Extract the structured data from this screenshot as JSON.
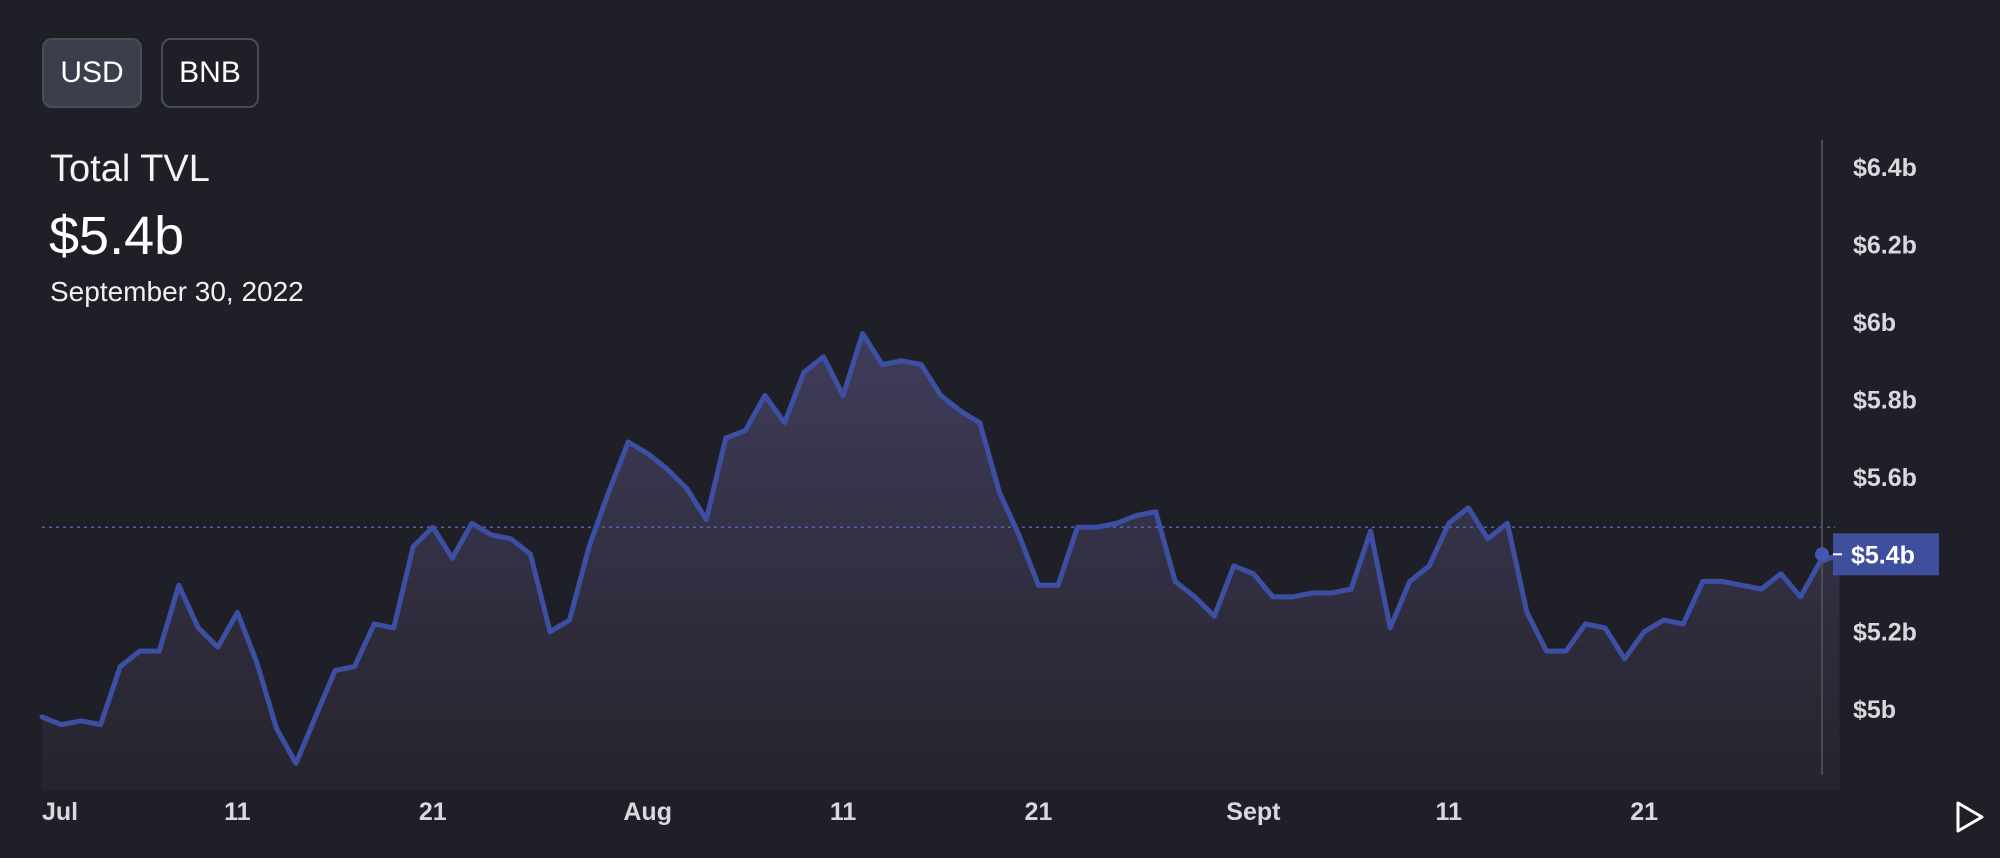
{
  "toggles": [
    {
      "label": "USD",
      "active": true
    },
    {
      "label": "BNB",
      "active": false
    }
  ],
  "header": {
    "title": "Total TVL",
    "value": "$5.4b",
    "date": "September 30, 2022"
  },
  "current_value_label": "$5.4b",
  "play_icon": "play-icon",
  "colors": {
    "background": "#1f2027",
    "line": "#3d4fa3",
    "current_label_bg": "#3e4f9e",
    "grid": "#5a5fb0"
  },
  "chart_data": {
    "type": "area",
    "title": "Total TVL",
    "xlabel": "",
    "ylabel": "",
    "ylim": [
      4.83,
      6.47
    ],
    "xlim": [
      "2022-07-01",
      "2022-09-30"
    ],
    "x_ticks": [
      {
        "label": "Jul",
        "date": "2022-07-01"
      },
      {
        "label": "11",
        "date": "2022-07-11"
      },
      {
        "label": "21",
        "date": "2022-07-21"
      },
      {
        "label": "Aug",
        "date": "2022-08-01"
      },
      {
        "label": "11",
        "date": "2022-08-11"
      },
      {
        "label": "21",
        "date": "2022-08-21"
      },
      {
        "label": "Sept",
        "date": "2022-09-01"
      },
      {
        "label": "11",
        "date": "2022-09-11"
      },
      {
        "label": "21",
        "date": "2022-09-21"
      }
    ],
    "y_ticks": [
      {
        "label": "$5b",
        "value": 5.0
      },
      {
        "label": "$5.2b",
        "value": 5.2
      },
      {
        "label": "$5.4b",
        "value": 5.4
      },
      {
        "label": "$5.6b",
        "value": 5.6
      },
      {
        "label": "$5.8b",
        "value": 5.8
      },
      {
        "label": "$6b",
        "value": 6.0
      },
      {
        "label": "$6.2b",
        "value": 6.2
      },
      {
        "label": "$6.4b",
        "value": 6.4
      }
    ],
    "grid": false,
    "legend": "none",
    "reference_line": 5.47,
    "series": [
      {
        "points": [
          [
            "2022-07-01",
            4.98
          ],
          [
            "2022-07-02",
            4.96
          ],
          [
            "2022-07-03",
            4.97
          ],
          [
            "2022-07-04",
            4.96
          ],
          [
            "2022-07-05",
            5.11
          ],
          [
            "2022-07-06",
            5.15
          ],
          [
            "2022-07-07",
            5.15
          ],
          [
            "2022-07-08",
            5.32
          ],
          [
            "2022-07-09",
            5.21
          ],
          [
            "2022-07-10",
            5.16
          ],
          [
            "2022-07-11",
            5.25
          ],
          [
            "2022-07-12",
            5.12
          ],
          [
            "2022-07-13",
            4.95
          ],
          [
            "2022-07-14",
            4.86
          ],
          [
            "2022-07-15",
            4.98
          ],
          [
            "2022-07-16",
            5.1
          ],
          [
            "2022-07-17",
            5.11
          ],
          [
            "2022-07-18",
            5.22
          ],
          [
            "2022-07-19",
            5.21
          ],
          [
            "2022-07-20",
            5.42
          ],
          [
            "2022-07-21",
            5.47
          ],
          [
            "2022-07-22",
            5.39
          ],
          [
            "2022-07-23",
            5.48
          ],
          [
            "2022-07-24",
            5.45
          ],
          [
            "2022-07-25",
            5.44
          ],
          [
            "2022-07-26",
            5.4
          ],
          [
            "2022-07-27",
            5.2
          ],
          [
            "2022-07-28",
            5.23
          ],
          [
            "2022-07-29",
            5.42
          ],
          [
            "2022-07-30",
            5.56
          ],
          [
            "2022-07-31",
            5.69
          ],
          [
            "2022-08-01",
            5.66
          ],
          [
            "2022-08-02",
            5.62
          ],
          [
            "2022-08-03",
            5.57
          ],
          [
            "2022-08-04",
            5.49
          ],
          [
            "2022-08-05",
            5.7
          ],
          [
            "2022-08-06",
            5.72
          ],
          [
            "2022-08-07",
            5.81
          ],
          [
            "2022-08-08",
            5.74
          ],
          [
            "2022-08-09",
            5.87
          ],
          [
            "2022-08-10",
            5.91
          ],
          [
            "2022-08-11",
            5.81
          ],
          [
            "2022-08-12",
            5.97
          ],
          [
            "2022-08-13",
            5.89
          ],
          [
            "2022-08-14",
            5.9
          ],
          [
            "2022-08-15",
            5.89
          ],
          [
            "2022-08-16",
            5.81
          ],
          [
            "2022-08-17",
            5.77
          ],
          [
            "2022-08-18",
            5.74
          ],
          [
            "2022-08-19",
            5.56
          ],
          [
            "2022-08-20",
            5.45
          ],
          [
            "2022-08-21",
            5.32
          ],
          [
            "2022-08-22",
            5.32
          ],
          [
            "2022-08-23",
            5.47
          ],
          [
            "2022-08-24",
            5.47
          ],
          [
            "2022-08-25",
            5.48
          ],
          [
            "2022-08-26",
            5.5
          ],
          [
            "2022-08-27",
            5.51
          ],
          [
            "2022-08-28",
            5.33
          ],
          [
            "2022-08-29",
            5.29
          ],
          [
            "2022-08-30",
            5.24
          ],
          [
            "2022-08-31",
            5.37
          ],
          [
            "2022-09-01",
            5.35
          ],
          [
            "2022-09-02",
            5.29
          ],
          [
            "2022-09-03",
            5.29
          ],
          [
            "2022-09-04",
            5.3
          ],
          [
            "2022-09-05",
            5.3
          ],
          [
            "2022-09-06",
            5.31
          ],
          [
            "2022-09-07",
            5.46
          ],
          [
            "2022-09-08",
            5.21
          ],
          [
            "2022-09-09",
            5.33
          ],
          [
            "2022-09-10",
            5.37
          ],
          [
            "2022-09-11",
            5.48
          ],
          [
            "2022-09-12",
            5.52
          ],
          [
            "2022-09-13",
            5.44
          ],
          [
            "2022-09-14",
            5.48
          ],
          [
            "2022-09-15",
            5.25
          ],
          [
            "2022-09-16",
            5.15
          ],
          [
            "2022-09-17",
            5.15
          ],
          [
            "2022-09-18",
            5.22
          ],
          [
            "2022-09-19",
            5.21
          ],
          [
            "2022-09-20",
            5.13
          ],
          [
            "2022-09-21",
            5.2
          ],
          [
            "2022-09-22",
            5.23
          ],
          [
            "2022-09-23",
            5.22
          ],
          [
            "2022-09-24",
            5.33
          ],
          [
            "2022-09-25",
            5.33
          ],
          [
            "2022-09-26",
            5.32
          ],
          [
            "2022-09-27",
            5.31
          ],
          [
            "2022-09-28",
            5.35
          ],
          [
            "2022-09-29",
            5.29
          ],
          [
            "2022-09-30",
            5.38
          ],
          [
            "2022-10-01",
            5.4
          ]
        ]
      }
    ]
  }
}
